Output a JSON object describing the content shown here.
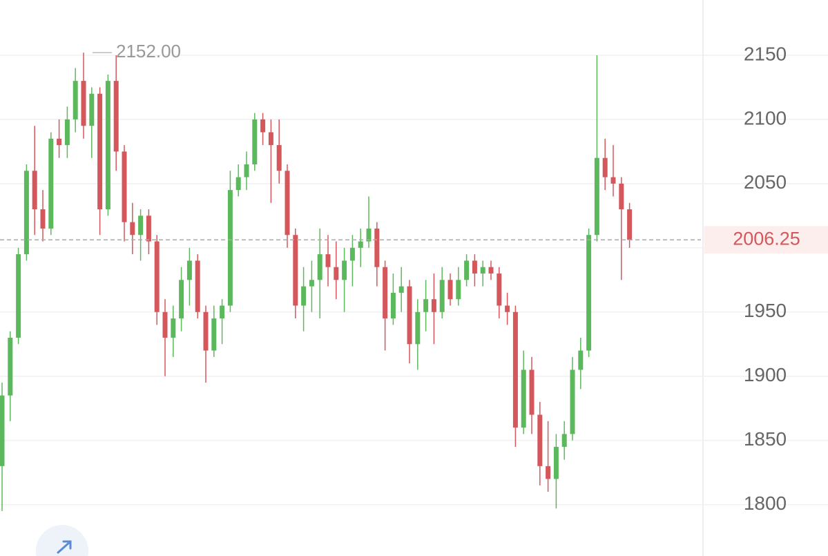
{
  "chart_data": {
    "type": "candlestick",
    "ylim": [
      1760,
      2193
    ],
    "yticks": [
      1800,
      1850,
      1900,
      1950,
      2000,
      2050,
      2100,
      2150
    ],
    "grid": true,
    "up_color": "#5cb85c",
    "down_color": "#d4575c",
    "high_marker": {
      "value": 2152,
      "label": "2152.00"
    },
    "current_price": 2006.25,
    "open": [
      1830,
      1885,
      1930,
      1995,
      2060,
      2030,
      2015,
      2085,
      2080,
      2100,
      2130,
      2095,
      2120,
      2030,
      2130,
      2075,
      2020,
      2010,
      2025,
      2005,
      1950,
      1930,
      1945,
      1975,
      1990,
      1950,
      1920,
      1945,
      1955,
      2045,
      2055,
      2065,
      2100,
      2090,
      2080,
      2060,
      2010,
      1955,
      1970,
      1975,
      1995,
      1985,
      1975,
      1990,
      2000,
      2005,
      2015,
      1985,
      1945,
      1965,
      1970,
      1925,
      1950,
      1960,
      1950,
      1975,
      1960,
      1975,
      1990,
      1980,
      1985,
      1980,
      1955,
      1950,
      1860,
      1905,
      1870,
      1830,
      1820,
      1845,
      1855,
      1905,
      1920,
      2010,
      2070,
      2055,
      2050,
      2030
    ],
    "high": [
      1895,
      1935,
      2000,
      2065,
      2095,
      2045,
      2090,
      2100,
      2110,
      2140,
      2152,
      2125,
      2125,
      2135,
      2150,
      2080,
      2035,
      2030,
      2030,
      2010,
      1960,
      1955,
      1985,
      2000,
      1995,
      1955,
      1955,
      1960,
      2060,
      2065,
      2075,
      2105,
      2105,
      2100,
      2100,
      2065,
      2015,
      1985,
      1990,
      2015,
      2010,
      2005,
      2000,
      2010,
      2015,
      2040,
      2020,
      1990,
      1980,
      1985,
      1975,
      1960,
      1975,
      1980,
      1985,
      1980,
      1985,
      1995,
      1995,
      1990,
      1990,
      1985,
      1965,
      1955,
      1920,
      1915,
      1880,
      1865,
      1855,
      1865,
      1915,
      1930,
      2015,
      2150,
      2085,
      2080,
      2055,
      2035
    ],
    "low": [
      1795,
      1865,
      1925,
      1990,
      2010,
      2005,
      2010,
      2070,
      2070,
      2090,
      2085,
      2070,
      2010,
      2025,
      2060,
      2005,
      1995,
      1990,
      1995,
      1940,
      1900,
      1915,
      1935,
      1955,
      1945,
      1895,
      1915,
      1925,
      1950,
      2040,
      2045,
      2060,
      2080,
      2035,
      2050,
      2000,
      1945,
      1935,
      1950,
      1945,
      1970,
      1960,
      1950,
      1970,
      1985,
      2000,
      1970,
      1920,
      1940,
      1950,
      1910,
      1905,
      1935,
      1925,
      1945,
      1955,
      1955,
      1970,
      1970,
      1970,
      1975,
      1945,
      1940,
      1845,
      1855,
      1855,
      1815,
      1810,
      1797,
      1835,
      1850,
      1890,
      1915,
      2005,
      2045,
      2040,
      1975,
      2000
    ],
    "close": [
      1885,
      1930,
      1995,
      2060,
      2030,
      2015,
      2085,
      2080,
      2100,
      2130,
      2095,
      2120,
      2030,
      2130,
      2075,
      2020,
      2010,
      2025,
      2005,
      1950,
      1930,
      1945,
      1975,
      1990,
      1950,
      1920,
      1945,
      1955,
      2045,
      2055,
      2065,
      2100,
      2090,
      2080,
      2060,
      2010,
      1955,
      1970,
      1975,
      1995,
      1985,
      1975,
      1990,
      2000,
      2005,
      2015,
      1985,
      1945,
      1965,
      1970,
      1925,
      1950,
      1960,
      1950,
      1975,
      1960,
      1975,
      1990,
      1980,
      1985,
      1980,
      1955,
      1950,
      1860,
      1905,
      1870,
      1830,
      1820,
      1845,
      1855,
      1905,
      1920,
      2010,
      2070,
      2055,
      2050,
      2030,
      2006.25
    ]
  }
}
